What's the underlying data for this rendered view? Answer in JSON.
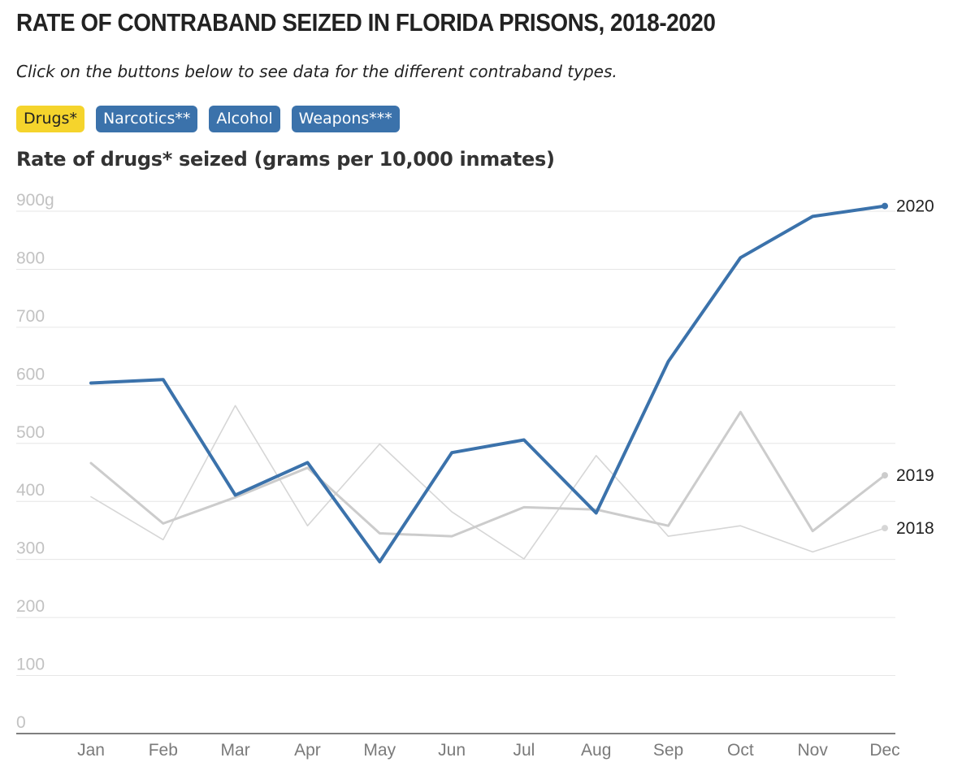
{
  "title": "RATE OF CONTRABAND SEIZED IN FLORIDA PRISONS, 2018-2020",
  "subtitle": "Click on the buttons below to see data for the different contraband types.",
  "buttons": [
    {
      "label": "Drugs*",
      "active": true
    },
    {
      "label": "Narcotics**",
      "active": false
    },
    {
      "label": "Alcohol",
      "active": false
    },
    {
      "label": "Weapons***",
      "active": false
    }
  ],
  "colors": {
    "active_button": "#f5d42c",
    "button": "#3b72ab",
    "series_2020": "#3b72ab",
    "series_2019": "#cccccc",
    "series_2018": "#d6d6d6",
    "grid": "#e6e6e6"
  },
  "chart_data": {
    "type": "line",
    "title": "Rate of drugs* seized (grams per 10,000 inmates)",
    "categories": [
      "Jan",
      "Feb",
      "Mar",
      "Apr",
      "May",
      "Jun",
      "Jul",
      "Aug",
      "Sep",
      "Oct",
      "Nov",
      "Dec"
    ],
    "ylim": [
      0,
      900
    ],
    "yticks": [
      0,
      100,
      200,
      300,
      400,
      500,
      600,
      700,
      800,
      900
    ],
    "ytick_labels": [
      "0",
      "100",
      "200",
      "300",
      "400",
      "500",
      "600",
      "700",
      "800",
      "900g"
    ],
    "series": [
      {
        "name": "2018",
        "values": [
          408,
          334,
          565,
          358,
          499,
          382,
          301,
          479,
          340,
          358,
          313,
          354
        ]
      },
      {
        "name": "2019",
        "values": [
          466,
          362,
          407,
          458,
          345,
          340,
          390,
          386,
          358,
          554,
          349,
          445
        ]
      },
      {
        "name": "2020",
        "values": [
          604,
          610,
          411,
          467,
          296,
          484,
          506,
          380,
          641,
          820,
          891,
          909
        ]
      }
    ]
  }
}
